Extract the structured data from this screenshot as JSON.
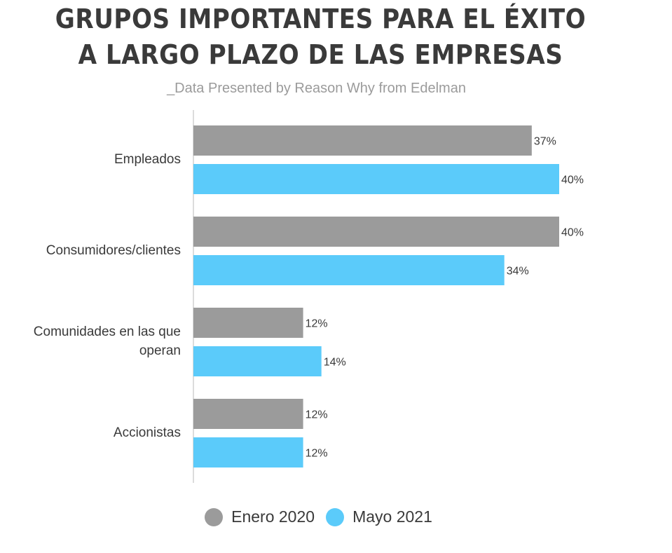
{
  "chart_data": {
    "type": "bar",
    "orientation": "horizontal",
    "title_lines": [
      "GRUPOS IMPORTANTES PARA EL ÉXITO",
      "A LARGO PLAZO DE LAS EMPRESAS"
    ],
    "subtitle": "_Data Presented by Reason Why from Edelman",
    "categories": [
      [
        "Empleados"
      ],
      [
        "Consumidores/clientes"
      ],
      [
        "Comunidades en las que",
        "operan"
      ],
      [
        "Accionistas"
      ]
    ],
    "series": [
      {
        "name": "Enero 2020",
        "color": "#9b9b9b",
        "values": [
          37,
          40,
          12,
          12
        ],
        "labels": [
          "37%",
          "40%",
          "12%",
          "12%"
        ]
      },
      {
        "name": "Mayo 2021",
        "color": "#5bcbfa",
        "values": [
          40,
          34,
          14,
          12
        ],
        "labels": [
          "40%",
          "34%",
          "14%",
          "12%"
        ]
      }
    ],
    "value_unit": "%",
    "xlim": [
      0,
      40
    ],
    "grid": false,
    "legend_position": "bottom"
  }
}
